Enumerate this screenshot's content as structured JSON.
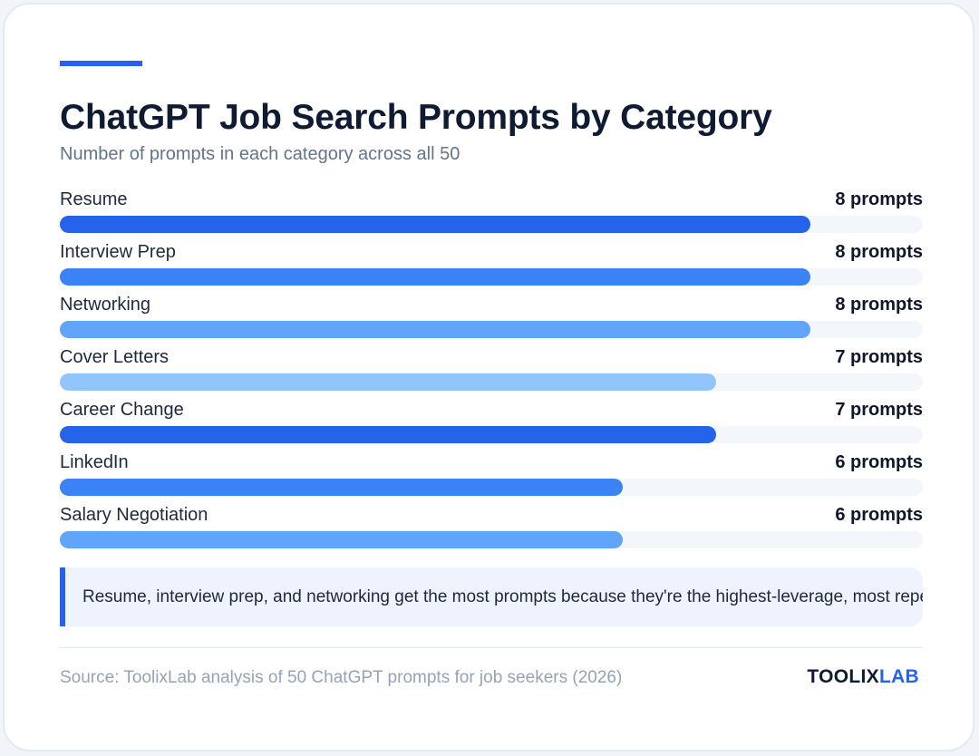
{
  "accent_color": "#2563eb",
  "chart_data": {
    "type": "bar",
    "orientation": "horizontal",
    "title": "ChatGPT Job Search Prompts by Category",
    "subtitle": "Number of prompts in each category across all 50",
    "categories": [
      "Resume",
      "Interview Prep",
      "Networking",
      "Cover Letters",
      "Career Change",
      "LinkedIn",
      "Salary Negotiation"
    ],
    "values": [
      8,
      8,
      8,
      7,
      7,
      6,
      6
    ],
    "value_labels": [
      "8 prompts",
      "8 prompts",
      "8 prompts",
      "7 prompts",
      "7 prompts",
      "6 prompts",
      "6 prompts"
    ],
    "xlim": [
      0,
      9.2
    ],
    "bar_colors": [
      "#2563eb",
      "#3b82f6",
      "#60a5fa",
      "#93c5fd",
      "#2563eb",
      "#3b82f6",
      "#60a5fa"
    ],
    "grid": false,
    "legend": "none"
  },
  "note": "Resume, interview prep, and networking get the most prompts because they're the highest-leverage, most repeatable tasks in a job search.",
  "footer": {
    "source": "Source: ToolixLab analysis of 50 ChatGPT prompts for job seekers (2026)",
    "brand_main": "TOOLIX",
    "brand_accent": "LAB"
  }
}
